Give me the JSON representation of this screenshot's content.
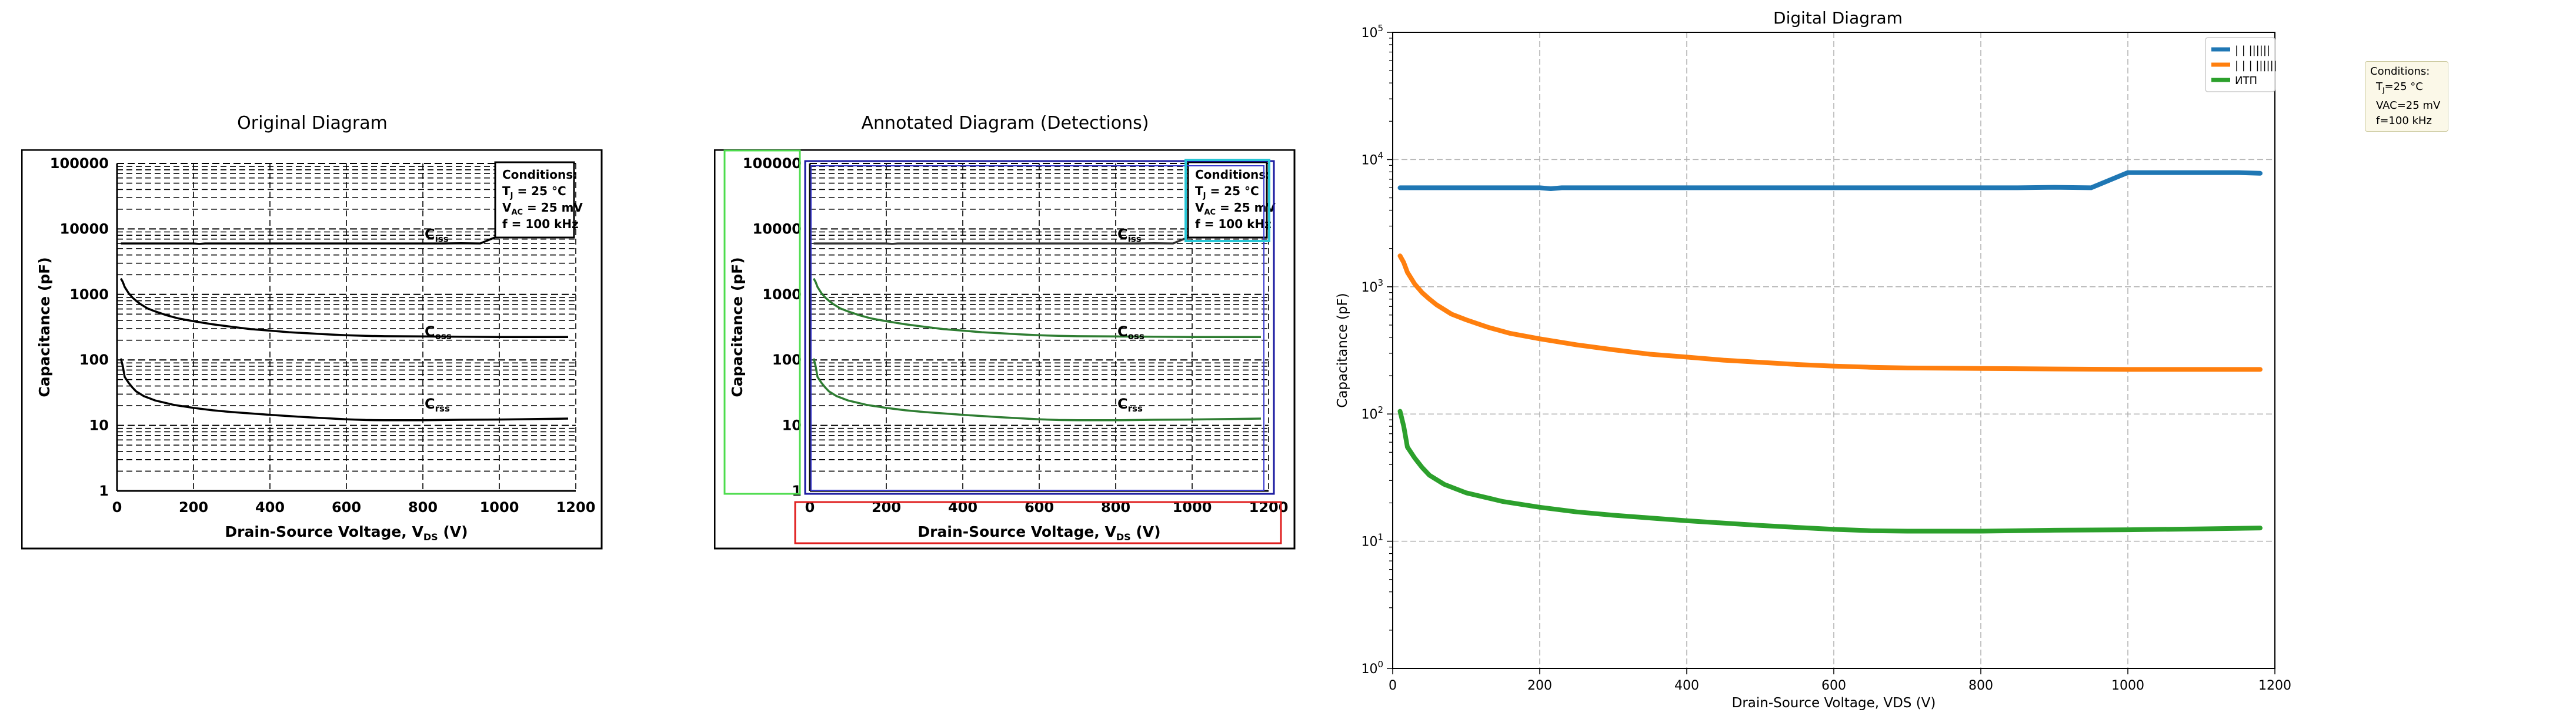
{
  "panels": {
    "original": {
      "title": "Original Diagram"
    },
    "annotated": {
      "title": "Annotated Diagram (Detections)"
    },
    "digital": {
      "title": "Digital Diagram"
    }
  },
  "original_plot": {
    "ylabel": "Capacitance (pF)",
    "xlabel": "Drain-Source Voltage, V",
    "xlabel_sub": "DS",
    "xlabel_unit": " (V)",
    "y_ticks": [
      "1",
      "10",
      "100",
      "1000",
      "10000",
      "100000"
    ],
    "x_ticks": [
      "0",
      "200",
      "400",
      "600",
      "800",
      "1000",
      "1200"
    ],
    "conditions": {
      "title": "Conditions:",
      "line1": "T",
      "line1_sub": "J",
      "line1_rest": " = 25 °C",
      "line2": "V",
      "line2_sub": "AC",
      "line2_rest": " = 25 mV",
      "line3": "f = 100 kHz"
    },
    "curve_labels": [
      {
        "main": "C",
        "sub": "iss"
      },
      {
        "main": "C",
        "sub": "oss"
      },
      {
        "main": "C",
        "sub": "rss"
      }
    ]
  },
  "chart_data": {
    "type": "line",
    "title": "Digital Diagram",
    "xlabel": "Drain-Source Voltage, VDS (V)",
    "ylabel": "Capacitance (pF)",
    "xlim": [
      0,
      1200
    ],
    "ylim": [
      1,
      100000
    ],
    "yscale": "log",
    "x_ticks": [
      "0",
      "200",
      "400",
      "600",
      "800",
      "1000",
      "1200"
    ],
    "y_ticks": [
      "10^0",
      "10^1",
      "10^2",
      "10^3",
      "10^4",
      "10^5"
    ],
    "grid": true,
    "legend_position": "top-right",
    "conditions_annotation": {
      "title": "Conditions:",
      "line1": "T",
      "line1_sub": "J",
      "line1_rest": "=25 °C",
      "line2": "VAC=25 mV",
      "line3": "f=100 kHz"
    },
    "series": [
      {
        "name": "| | ||||||",
        "color": "#1f77b4",
        "x": [
          10,
          50,
          100,
          150,
          200,
          215,
          230,
          300,
          400,
          500,
          600,
          700,
          800,
          850,
          900,
          950,
          1000,
          1050,
          1100,
          1150,
          1180
        ],
        "y": [
          6000,
          6000,
          6000,
          6000,
          6000,
          5900,
          6000,
          6000,
          6000,
          6000,
          6000,
          6000,
          6000,
          6000,
          6050,
          6000,
          7900,
          7900,
          7900,
          7900,
          7800
        ]
      },
      {
        "name": "| | | ||||||",
        "color": "#ff7f0e",
        "x": [
          10,
          15,
          20,
          30,
          40,
          50,
          60,
          80,
          100,
          130,
          160,
          200,
          250,
          300,
          350,
          400,
          450,
          500,
          550,
          600,
          650,
          700,
          800,
          900,
          1000,
          1100,
          1180
        ],
        "y": [
          1750,
          1550,
          1300,
          1050,
          900,
          800,
          720,
          610,
          550,
          480,
          430,
          390,
          350,
          320,
          295,
          280,
          265,
          255,
          245,
          238,
          233,
          230,
          228,
          226,
          224,
          224,
          224
        ]
      },
      {
        "name": "ИТП",
        "color": "#2ca02c",
        "x": [
          10,
          15,
          20,
          30,
          40,
          50,
          70,
          100,
          150,
          200,
          250,
          300,
          400,
          500,
          600,
          650,
          700,
          800,
          900,
          1000,
          1100,
          1180
        ],
        "y": [
          105,
          80,
          55,
          45,
          38,
          33,
          28,
          24,
          20.5,
          18.5,
          17,
          16,
          14.5,
          13.3,
          12.4,
          12.1,
          12.0,
          12.0,
          12.2,
          12.3,
          12.5,
          12.7
        ]
      }
    ]
  }
}
